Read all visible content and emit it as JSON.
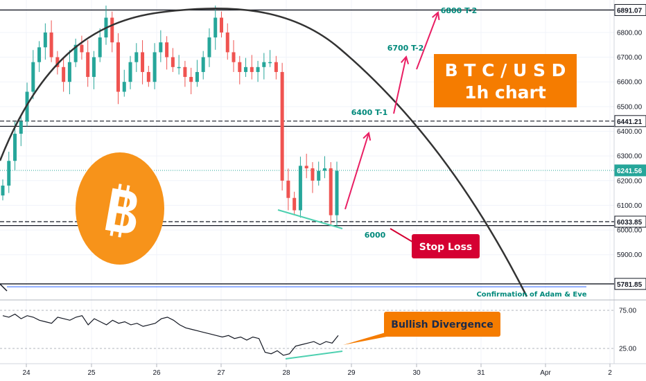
{
  "chart_data": {
    "type": "candlestick",
    "title": "B T C / U S D",
    "subtitle": "1h chart",
    "x_ticks": [
      "24",
      "25",
      "26",
      "27",
      "28",
      "29",
      "30",
      "31",
      "Apr",
      "2"
    ],
    "y_ticks": [
      5900,
      6000,
      6100,
      6200,
      6300,
      6400,
      6500,
      6600,
      6700,
      6800
    ],
    "y_tick_labels": [
      "5900.00",
      "6000.00",
      "6100.00",
      "6200.00",
      "6300.00",
      "6400.00",
      "6500.00",
      "6600.00",
      "6700.00",
      "6800.00"
    ],
    "ylim": [
      5760,
      6920
    ],
    "price_labels": [
      {
        "value": 6891.07,
        "text": "6891.07",
        "style": "outline"
      },
      {
        "value": 6441.21,
        "text": "6441.21",
        "style": "outline"
      },
      {
        "value": 6241.56,
        "text": "6241.56",
        "style": "green"
      },
      {
        "value": 6033.85,
        "text": "6033.85",
        "style": "outline"
      },
      {
        "value": 5781.85,
        "text": "5781.85",
        "style": "outline"
      }
    ],
    "horizontal_levels": [
      6891.07,
      6441.21,
      6420,
      6033.85,
      6018,
      5781.85
    ],
    "close_series": [
      6180,
      6280,
      6390,
      6440,
      6560,
      6680,
      6740,
      6800,
      6700,
      6660,
      6600,
      6680,
      6750,
      6720,
      6620,
      6700,
      6780,
      6860,
      6760,
      6560,
      6600,
      6680,
      6720,
      6640,
      6600,
      6720,
      6760,
      6700,
      6660,
      6660,
      6620,
      6600,
      6640,
      6700,
      6780,
      6860,
      6800,
      6720,
      6680,
      6640,
      6660,
      6640,
      6660,
      6680,
      6680,
      6640,
      6200,
      6130,
      6080,
      6260,
      6250,
      6200,
      6240,
      6250,
      6060,
      6240
    ],
    "annotations": {
      "t1": "6400 T-1",
      "t2a": "6700 T-2",
      "t2b": "6800 T-2",
      "support": "6000",
      "stop_loss": "Stop Loss",
      "confirmation": "Confirmation of Adam & Eve",
      "bullish_divergence": "Bullish Divergence"
    },
    "indicator": {
      "y_ticks": [
        25,
        75
      ],
      "y_tick_labels": [
        "25.00",
        "75.00"
      ],
      "ylim": [
        10,
        90
      ],
      "values": [
        68,
        66,
        70,
        64,
        68,
        66,
        62,
        60,
        58,
        66,
        64,
        62,
        66,
        68,
        56,
        64,
        60,
        56,
        62,
        58,
        60,
        56,
        58,
        54,
        56,
        58,
        64,
        66,
        62,
        56,
        52,
        50,
        48,
        46,
        44,
        42,
        40,
        42,
        38,
        40,
        36,
        40,
        38,
        20,
        18,
        22,
        16,
        18,
        28,
        30,
        32,
        34,
        30,
        34,
        32,
        42
      ]
    }
  }
}
